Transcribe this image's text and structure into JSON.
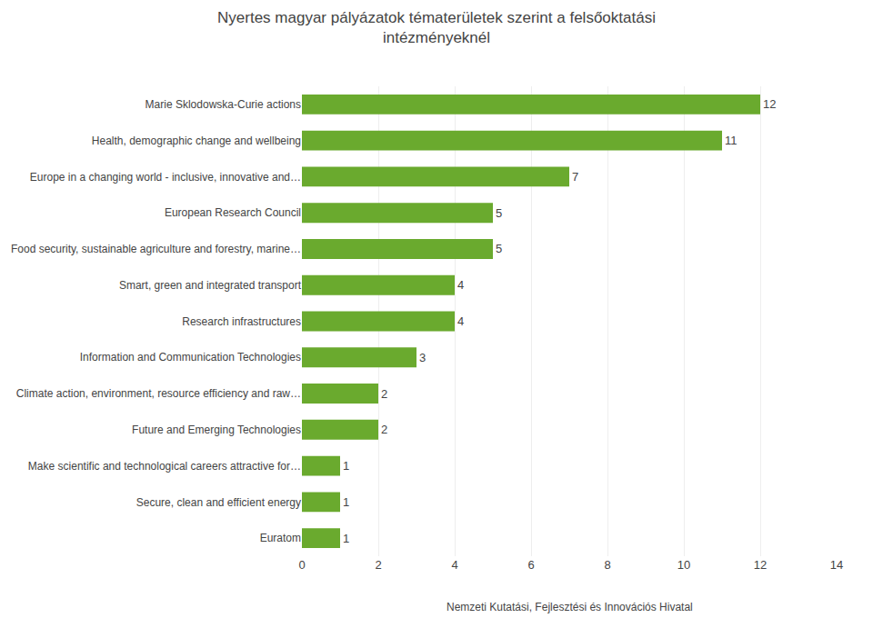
{
  "chart_data": {
    "type": "bar",
    "orientation": "horizontal",
    "title": "Nyertes magyar pályázatok tématerületek szerint a felsőoktatási\nintézményeknél",
    "categories": [
      "Euratom",
      "Secure, clean and efficient energy",
      "Make scientific and technological careers attractive for…",
      "Future and Emerging Technologies",
      "Climate action, environment, resource efficiency and raw…",
      "Information and Communication Technologies",
      "Research infrastructures",
      "Smart, green and integrated transport",
      "Food security, sustainable agriculture and forestry, marine…",
      "European Research Council",
      "Europe in a changing world - inclusive, innovative and…",
      "Health, demographic change and wellbeing",
      "Marie Sklodowska-Curie actions"
    ],
    "values": [
      1,
      1,
      1,
      2,
      2,
      3,
      4,
      4,
      5,
      5,
      7,
      11,
      12
    ],
    "color": "#6aaa2e",
    "xlim": [
      0,
      14
    ],
    "xticks": [
      0,
      2,
      4,
      6,
      8,
      10,
      12,
      14
    ],
    "grid": true,
    "data_labels": true,
    "annotations": [
      "Nemzeti Kutatási, Fejlesztési és Innovációs Hivatal"
    ]
  }
}
